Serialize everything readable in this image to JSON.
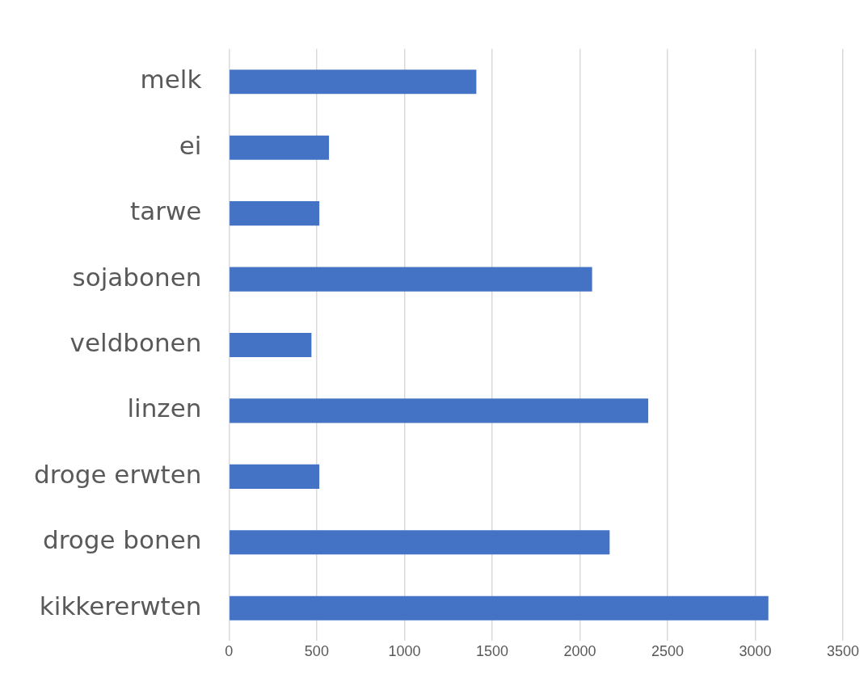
{
  "chart_data": {
    "type": "bar",
    "orientation": "horizontal",
    "categories": [
      "melk",
      "ei",
      "tarwe",
      "sojabonen",
      "veldbonen",
      "linzen",
      "droge erwten",
      "droge bonen",
      "kikkererwten"
    ],
    "values": [
      1410,
      570,
      515,
      2070,
      470,
      2390,
      515,
      2170,
      3075
    ],
    "color": "#4472c4",
    "xlim": [
      0,
      3500
    ],
    "xticks": [
      0,
      500,
      1000,
      1500,
      2000,
      2500,
      3000,
      3500
    ],
    "grid": "x",
    "legend": false
  }
}
